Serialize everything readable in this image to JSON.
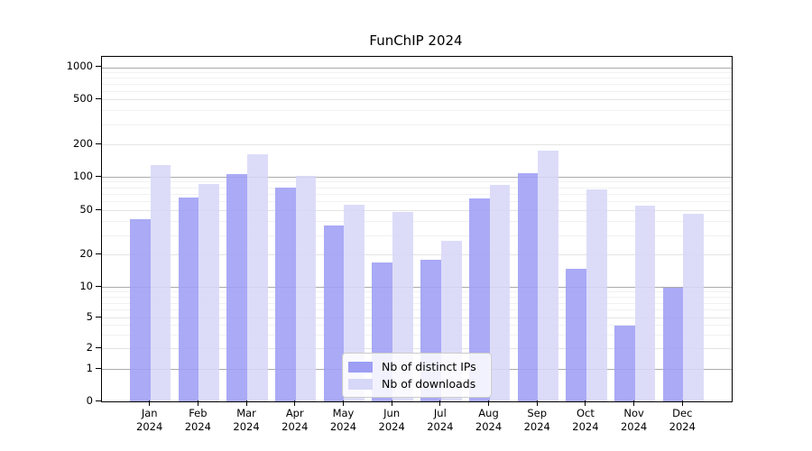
{
  "chart_data": {
    "type": "bar",
    "title": "FunChIP 2024",
    "categories": [
      "Jan 2024",
      "Feb 2024",
      "Mar 2024",
      "Apr 2024",
      "May 2024",
      "Jun 2024",
      "Jul 2024",
      "Aug 2024",
      "Sep 2024",
      "Oct 2024",
      "Nov 2024",
      "Dec 2024"
    ],
    "x_tick_months": [
      "Jan",
      "Feb",
      "Mar",
      "Apr",
      "May",
      "Jun",
      "Jul",
      "Aug",
      "Sep",
      "Oct",
      "Nov",
      "Dec"
    ],
    "x_tick_year": "2024",
    "series": [
      {
        "name": "Nb of distinct IPs",
        "color": "#9e9ef5",
        "values": [
          42,
          66,
          107,
          80,
          37,
          17,
          18,
          64,
          108,
          15,
          4,
          10
        ]
      },
      {
        "name": "Nb of downloads",
        "color": "#d7d7f8",
        "values": [
          130,
          87,
          165,
          102,
          57,
          49,
          27,
          85,
          177,
          77,
          56,
          47
        ]
      }
    ],
    "y_scale": "symlog",
    "y_ticks": [
      0,
      1,
      2,
      5,
      10,
      20,
      50,
      100,
      200,
      500,
      1000
    ],
    "y_tick_labels": [
      "0",
      "1",
      "2",
      "5",
      "10",
      "20",
      "50",
      "100",
      "200",
      "500",
      "1000"
    ],
    "ylim": [
      0,
      1255
    ],
    "grid": true,
    "legend_position": "inside-lower-center"
  }
}
